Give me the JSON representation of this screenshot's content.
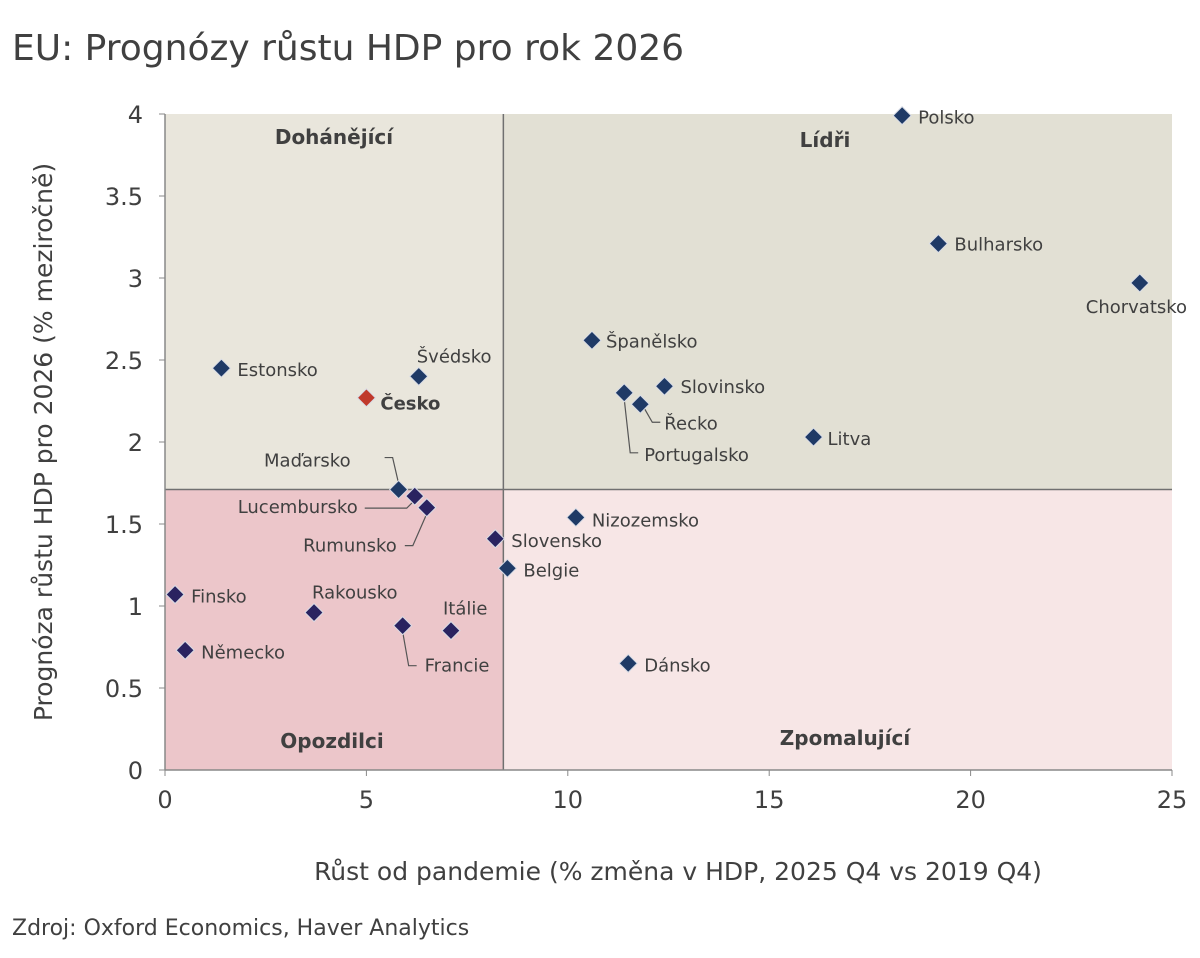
{
  "chart_data": {
    "type": "scatter",
    "title": "EU: Prognózy růstu HDP pro rok 2026",
    "xlabel": "Růst od pandemie (% změna v HDP, 2025 Q4 vs 2019 Q4)",
    "ylabel": "Prognóza růstu HDP pro 2026 (% meziročně)",
    "source": "Zdroj: Oxford Economics, Haver Analytics",
    "xlim": [
      0,
      25
    ],
    "ylim": [
      0,
      4
    ],
    "xticks": [
      "0",
      "5",
      "10",
      "15",
      "20",
      "25"
    ],
    "yticks": [
      "0",
      "0.5",
      "1",
      "1.5",
      "2",
      "2.5",
      "3",
      "3.5",
      "4"
    ],
    "quadrant_split": {
      "x": 8.4,
      "y": 1.71
    },
    "quadrants": {
      "top_left": "Dohánějící",
      "top_right": "Lídři",
      "bottom_left": "Opozdilci",
      "bottom_right": "Zpomalující"
    },
    "colors": {
      "point": "#1f3a66",
      "point_laggard": "#2a2360",
      "highlight": "#c0392b",
      "q_top_left": "#e9e6dc",
      "q_top_right": "#e2e0d4",
      "q_bottom_left": "#ecc6ca",
      "q_bottom_right": "#f7e6e6"
    },
    "points": [
      {
        "name": "Polsko",
        "x": 18.3,
        "y": 3.99
      },
      {
        "name": "Bulharsko",
        "x": 19.2,
        "y": 3.21
      },
      {
        "name": "Chorvatsko",
        "x": 24.2,
        "y": 2.97
      },
      {
        "name": "Španělsko",
        "x": 10.6,
        "y": 2.62
      },
      {
        "name": "Slovinsko",
        "x": 12.4,
        "y": 2.34
      },
      {
        "name": "Portugalsko",
        "x": 11.4,
        "y": 2.3
      },
      {
        "name": "Řecko",
        "x": 11.8,
        "y": 2.23
      },
      {
        "name": "Litva",
        "x": 16.1,
        "y": 2.03
      },
      {
        "name": "Estonsko",
        "x": 1.4,
        "y": 2.45
      },
      {
        "name": "Švédsko",
        "x": 6.3,
        "y": 2.4
      },
      {
        "name": "Česko",
        "x": 5.0,
        "y": 2.27,
        "highlight": true
      },
      {
        "name": "Maďarsko",
        "x": 5.8,
        "y": 1.71
      },
      {
        "name": "Lucembursko",
        "x": 6.2,
        "y": 1.67
      },
      {
        "name": "Rumunsko",
        "x": 6.5,
        "y": 1.6
      },
      {
        "name": "Nizozemsko",
        "x": 10.2,
        "y": 1.54
      },
      {
        "name": "Slovensko",
        "x": 8.2,
        "y": 1.41
      },
      {
        "name": "Belgie",
        "x": 8.5,
        "y": 1.23
      },
      {
        "name": "Finsko",
        "x": 0.25,
        "y": 1.07
      },
      {
        "name": "Rakousko",
        "x": 3.7,
        "y": 0.96
      },
      {
        "name": "Francie",
        "x": 5.9,
        "y": 0.88
      },
      {
        "name": "Itálie",
        "x": 7.1,
        "y": 0.85
      },
      {
        "name": "Německo",
        "x": 0.5,
        "y": 0.73
      },
      {
        "name": "Dánsko",
        "x": 11.5,
        "y": 0.65
      }
    ]
  }
}
